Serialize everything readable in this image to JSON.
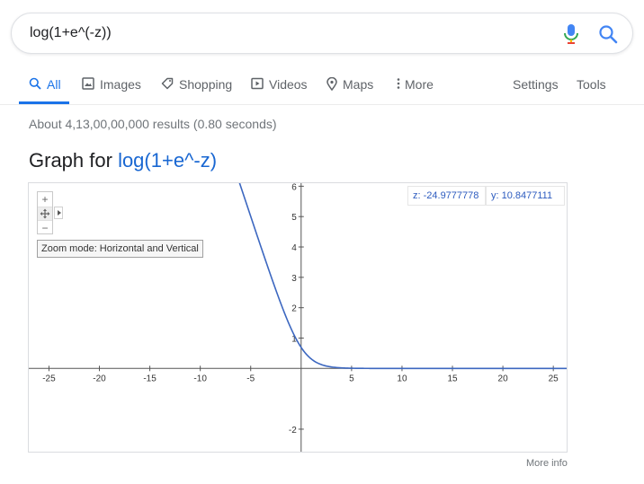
{
  "search": {
    "query": "log(1+e^(-z))"
  },
  "tabs": [
    {
      "label": "All",
      "icon": "search-icon"
    },
    {
      "label": "Images",
      "icon": "image-icon"
    },
    {
      "label": "Shopping",
      "icon": "tag-icon"
    },
    {
      "label": "Videos",
      "icon": "play-icon"
    },
    {
      "label": "Maps",
      "icon": "map-pin-icon"
    },
    {
      "label": "More",
      "icon": "more-vert-icon"
    }
  ],
  "tools": {
    "settings": "Settings",
    "tools": "Tools"
  },
  "result_stats": "About 4,13,00,00,000 results (0.80 seconds)",
  "graph": {
    "heading_prefix": "Graph for",
    "heading_function": "log(1+e^-z)",
    "zoom_in": "+",
    "zoom_out": "−",
    "zoom_mode_label": "Zoom mode: Horizontal and Vertical",
    "coord_z": "z: -24.9777778",
    "coord_y": "y: 10.8477111",
    "more_info": "More info"
  },
  "colors": {
    "accent": "#1a73e8",
    "curve": "#3c67c0",
    "axis": "#555555"
  },
  "chart_data": {
    "type": "line",
    "function": "log(1+e^-z)",
    "xlim": [
      -27,
      26.5
    ],
    "ylim": [
      -2.8,
      6.1
    ],
    "x_ticks": [
      -25,
      -20,
      -15,
      -10,
      -5,
      5,
      10,
      15,
      20,
      25
    ],
    "y_ticks": [
      -2,
      1,
      2,
      3,
      4,
      5,
      6
    ],
    "x_tick_labels": [
      "-25",
      "-20",
      "-15",
      "-10",
      "-5",
      "5",
      "10",
      "15",
      "20",
      "25"
    ],
    "y_tick_labels": [
      "-2",
      "1",
      "2",
      "3",
      "4",
      "5",
      "6"
    ],
    "grid": false
  }
}
